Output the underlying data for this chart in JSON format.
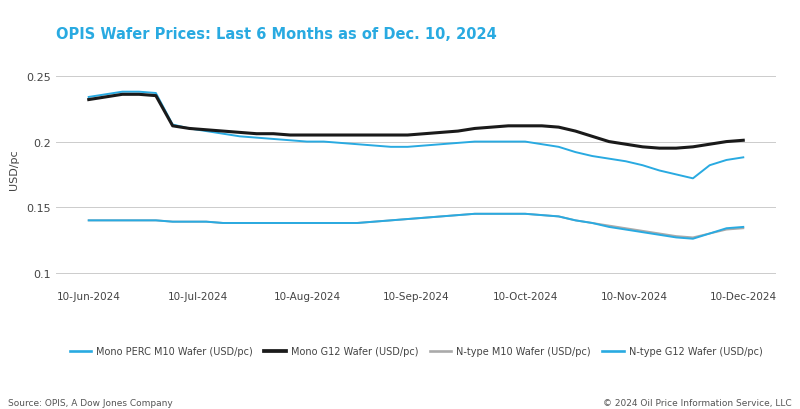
{
  "title": "OPIS Wafer Prices: Last 6 Months as of Dec. 10, 2024",
  "ylabel": "USD/pc",
  "source_left": "Source: OPIS, A Dow Jones Company",
  "source_right": "© 2024 Oil Price Information Service, LLC",
  "background_color": "#ffffff",
  "ylim": [
    0.09,
    0.268
  ],
  "yticks": [
    0.1,
    0.15,
    0.2,
    0.25
  ],
  "x_labels": [
    "10-Jun-2024",
    "10-Jul-2024",
    "10-Aug-2024",
    "10-Sep-2024",
    "10-Oct-2024",
    "10-Nov-2024",
    "10-Dec-2024"
  ],
  "series": {
    "mono_perc_m10": {
      "label": "Mono PERC M10 Wafer (USD/pc)",
      "color": "#29aae1",
      "linewidth": 1.4,
      "y": [
        0.234,
        0.236,
        0.238,
        0.238,
        0.237,
        0.213,
        0.21,
        0.208,
        0.206,
        0.204,
        0.203,
        0.202,
        0.201,
        0.2,
        0.2,
        0.199,
        0.198,
        0.197,
        0.196,
        0.196,
        0.197,
        0.198,
        0.199,
        0.2,
        0.2,
        0.2,
        0.2,
        0.198,
        0.196,
        0.192,
        0.189,
        0.187,
        0.185,
        0.182,
        0.178,
        0.175,
        0.172,
        0.182,
        0.186,
        0.188
      ]
    },
    "mono_g12": {
      "label": "Mono G12 Wafer (USD/pc)",
      "color": "#1a1a1a",
      "linewidth": 2.2,
      "y": [
        0.232,
        0.234,
        0.236,
        0.236,
        0.235,
        0.212,
        0.21,
        0.209,
        0.208,
        0.207,
        0.206,
        0.206,
        0.205,
        0.205,
        0.205,
        0.205,
        0.205,
        0.205,
        0.205,
        0.205,
        0.206,
        0.207,
        0.208,
        0.21,
        0.211,
        0.212,
        0.212,
        0.212,
        0.211,
        0.208,
        0.204,
        0.2,
        0.198,
        0.196,
        0.195,
        0.195,
        0.196,
        0.198,
        0.2,
        0.201
      ]
    },
    "ntype_m10": {
      "label": "N-type M10 Wafer (USD/pc)",
      "color": "#aaaaaa",
      "linewidth": 1.4,
      "y": [
        0.14,
        0.14,
        0.14,
        0.14,
        0.14,
        0.139,
        0.139,
        0.139,
        0.138,
        0.138,
        0.138,
        0.138,
        0.138,
        0.138,
        0.138,
        0.138,
        0.138,
        0.139,
        0.14,
        0.141,
        0.142,
        0.143,
        0.144,
        0.145,
        0.145,
        0.145,
        0.145,
        0.144,
        0.143,
        0.14,
        0.138,
        0.136,
        0.134,
        0.132,
        0.13,
        0.128,
        0.127,
        0.13,
        0.133,
        0.134
      ]
    },
    "ntype_g12": {
      "label": "N-type G12 Wafer (USD/pc)",
      "color": "#29aae1",
      "linewidth": 1.4,
      "y": [
        0.14,
        0.14,
        0.14,
        0.14,
        0.14,
        0.139,
        0.139,
        0.139,
        0.138,
        0.138,
        0.138,
        0.138,
        0.138,
        0.138,
        0.138,
        0.138,
        0.138,
        0.139,
        0.14,
        0.141,
        0.142,
        0.143,
        0.144,
        0.145,
        0.145,
        0.145,
        0.145,
        0.144,
        0.143,
        0.14,
        0.138,
        0.135,
        0.133,
        0.131,
        0.129,
        0.127,
        0.126,
        0.13,
        0.134,
        0.135
      ]
    }
  }
}
